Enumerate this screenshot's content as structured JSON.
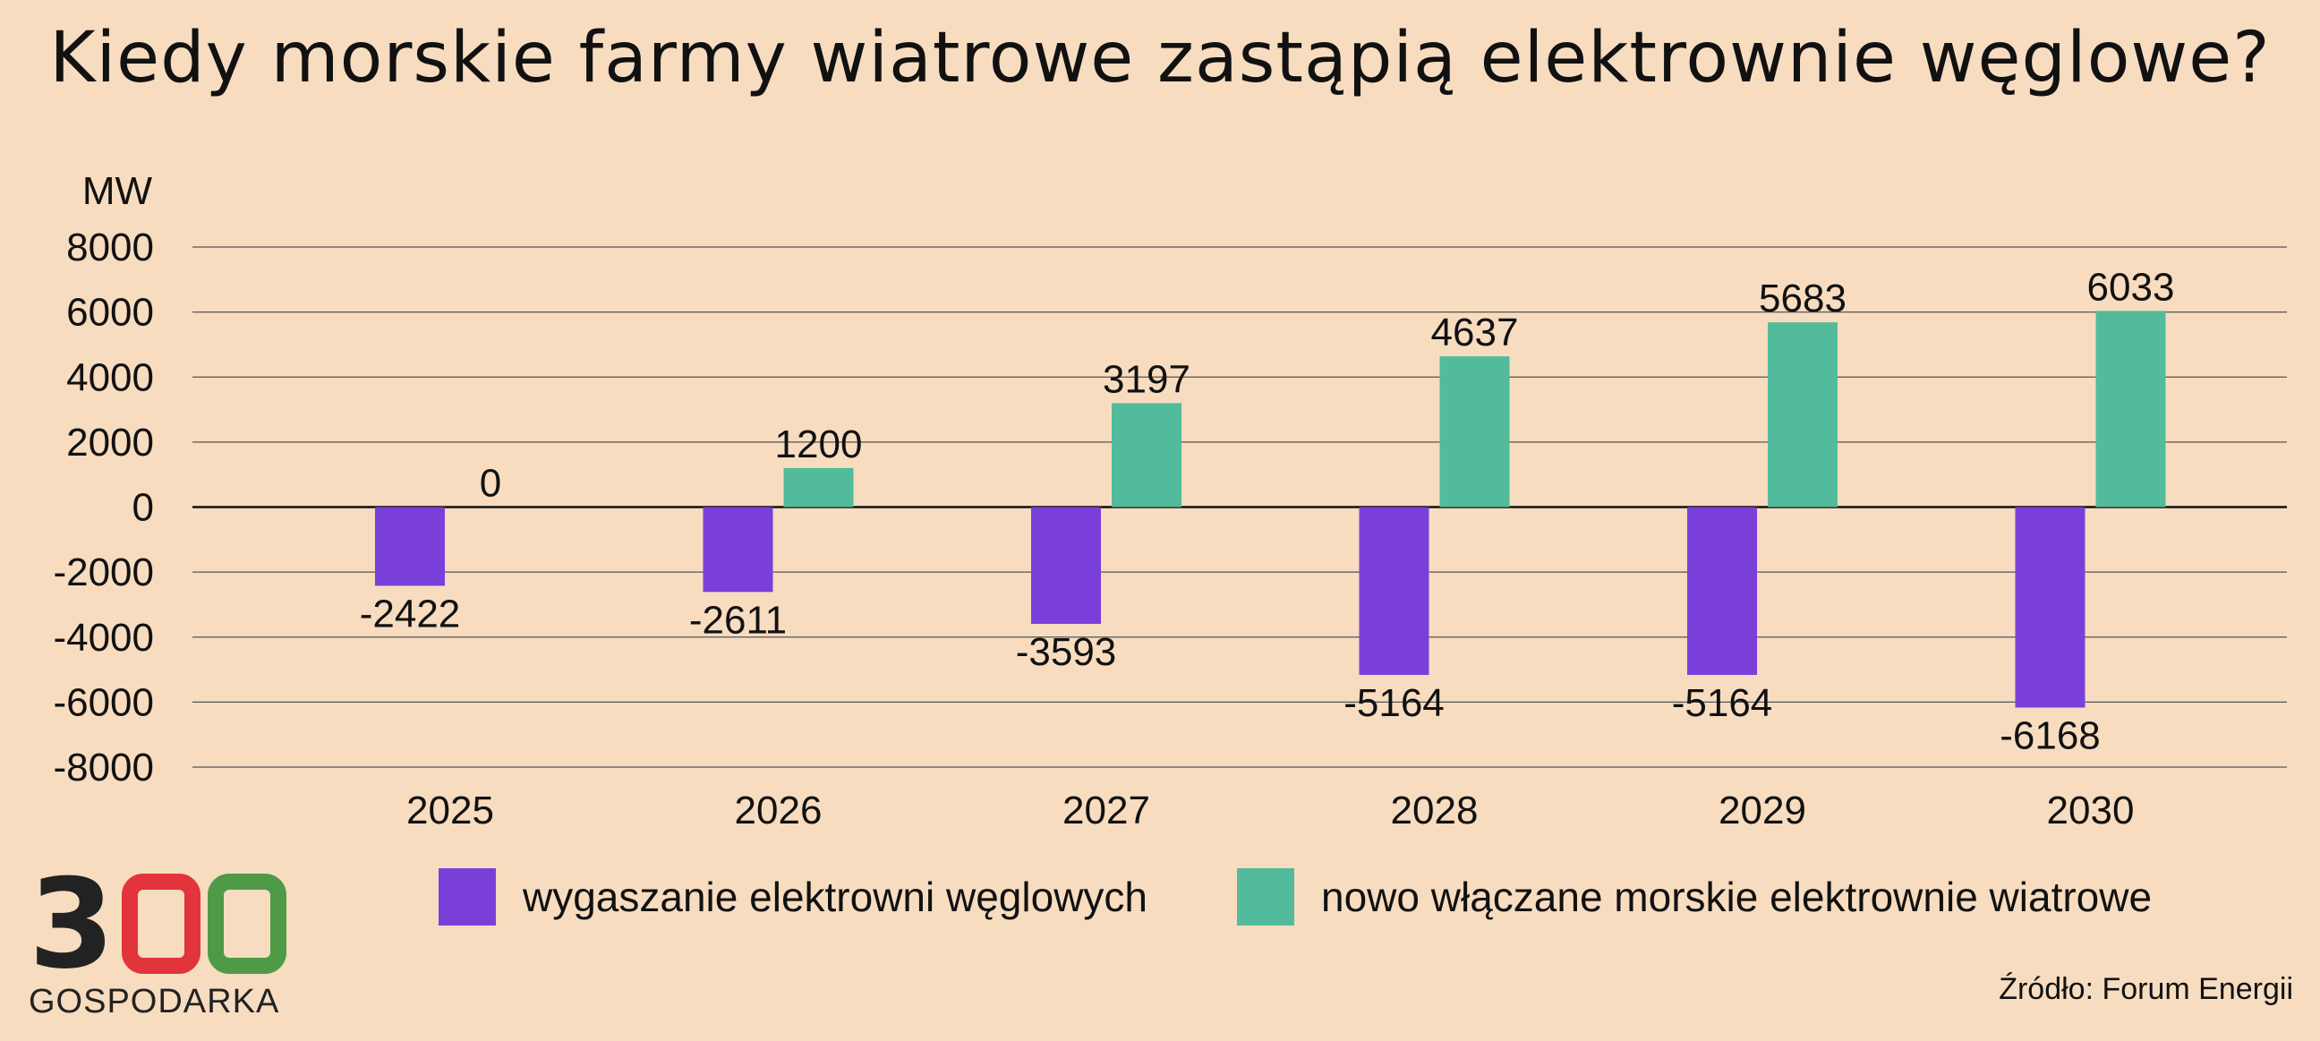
{
  "title": "Kiedy morskie farmy wiatrowe zastąpią elektrownie węglowe?",
  "chart_data": {
    "type": "bar",
    "ylabel": "MW",
    "ylim": [
      -8000,
      8000
    ],
    "yticks": [
      8000,
      6000,
      4000,
      2000,
      0,
      -2000,
      -4000,
      -6000,
      -8000
    ],
    "categories": [
      "2025",
      "2026",
      "2027",
      "2028",
      "2029",
      "2030"
    ],
    "series": [
      {
        "name": "wygaszanie elektrowni węglowych",
        "color": "#7b3fd9",
        "values": [
          -2422,
          -2611,
          -3593,
          -5164,
          -5164,
          -6168
        ]
      },
      {
        "name": "nowo włączane morskie elektrownie wiatrowe",
        "color": "#52bb9b",
        "values": [
          0,
          1200,
          3197,
          4637,
          5683,
          6033
        ]
      }
    ],
    "grid": true,
    "legend_position": "bottom"
  },
  "logo": {
    "digits": "3",
    "word": "GOSPODARKA",
    "color_red": "#e2343b",
    "color_green": "#4f9a47"
  },
  "source": "Źródło: Forum Energii"
}
